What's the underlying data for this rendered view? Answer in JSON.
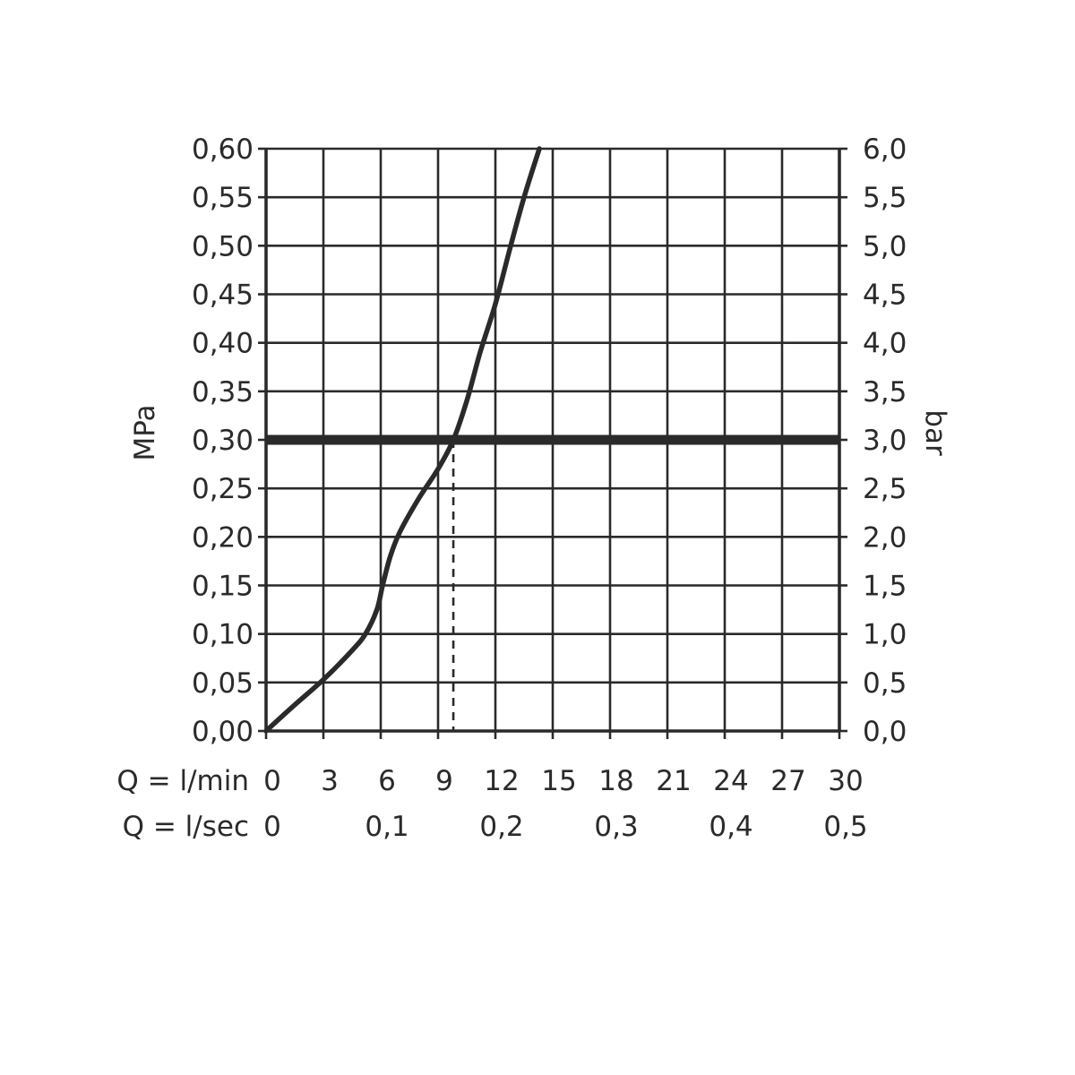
{
  "chart_data": {
    "type": "line",
    "title": "",
    "y_left": {
      "label": "MPa",
      "ticks": [
        "0,00",
        "0,05",
        "0,10",
        "0,15",
        "0,20",
        "0,25",
        "0,30",
        "0,35",
        "0,40",
        "0,45",
        "0,50",
        "0,55",
        "0,60"
      ],
      "ylim": [
        0,
        0.6
      ]
    },
    "y_right": {
      "label": "bar",
      "ticks": [
        "0,0",
        "0,5",
        "1,0",
        "1,5",
        "2,0",
        "2,5",
        "3,0",
        "3,5",
        "4,0",
        "4,5",
        "5,0",
        "5,5",
        "6,0"
      ],
      "ylim": [
        0,
        6
      ]
    },
    "x_primary": {
      "label": "Q = l/min",
      "ticks": [
        "0",
        "3",
        "6",
        "9",
        "12",
        "15",
        "18",
        "21",
        "24",
        "27",
        "30"
      ],
      "xlim": [
        0,
        30
      ]
    },
    "x_secondary": {
      "label": "Q = l/sec",
      "ticks": [
        {
          "value": 0,
          "label": "0"
        },
        {
          "value": 6,
          "label": "0,1"
        },
        {
          "value": 12,
          "label": "0,2"
        },
        {
          "value": 18,
          "label": "0,3"
        },
        {
          "value": 24,
          "label": "0,4"
        },
        {
          "value": 30,
          "label": "0,5"
        }
      ]
    },
    "grid": true,
    "series": [
      {
        "x": [
          0,
          1.5,
          3,
          4.5,
          5.2,
          5.8,
          6.1,
          6.5,
          7,
          8,
          9,
          9.8,
          10.5,
          11.2,
          12,
          12.8,
          13.5,
          14.3
        ],
        "y": [
          0,
          0.027,
          0.053,
          0.083,
          0.1,
          0.125,
          0.15,
          0.18,
          0.205,
          0.24,
          0.27,
          0.3,
          0.34,
          0.39,
          0.44,
          0.5,
          0.55,
          0.6
        ]
      }
    ],
    "reference_line": {
      "y": 0.3
    },
    "operating_point": {
      "x": 9.8,
      "y": 0.3
    }
  }
}
